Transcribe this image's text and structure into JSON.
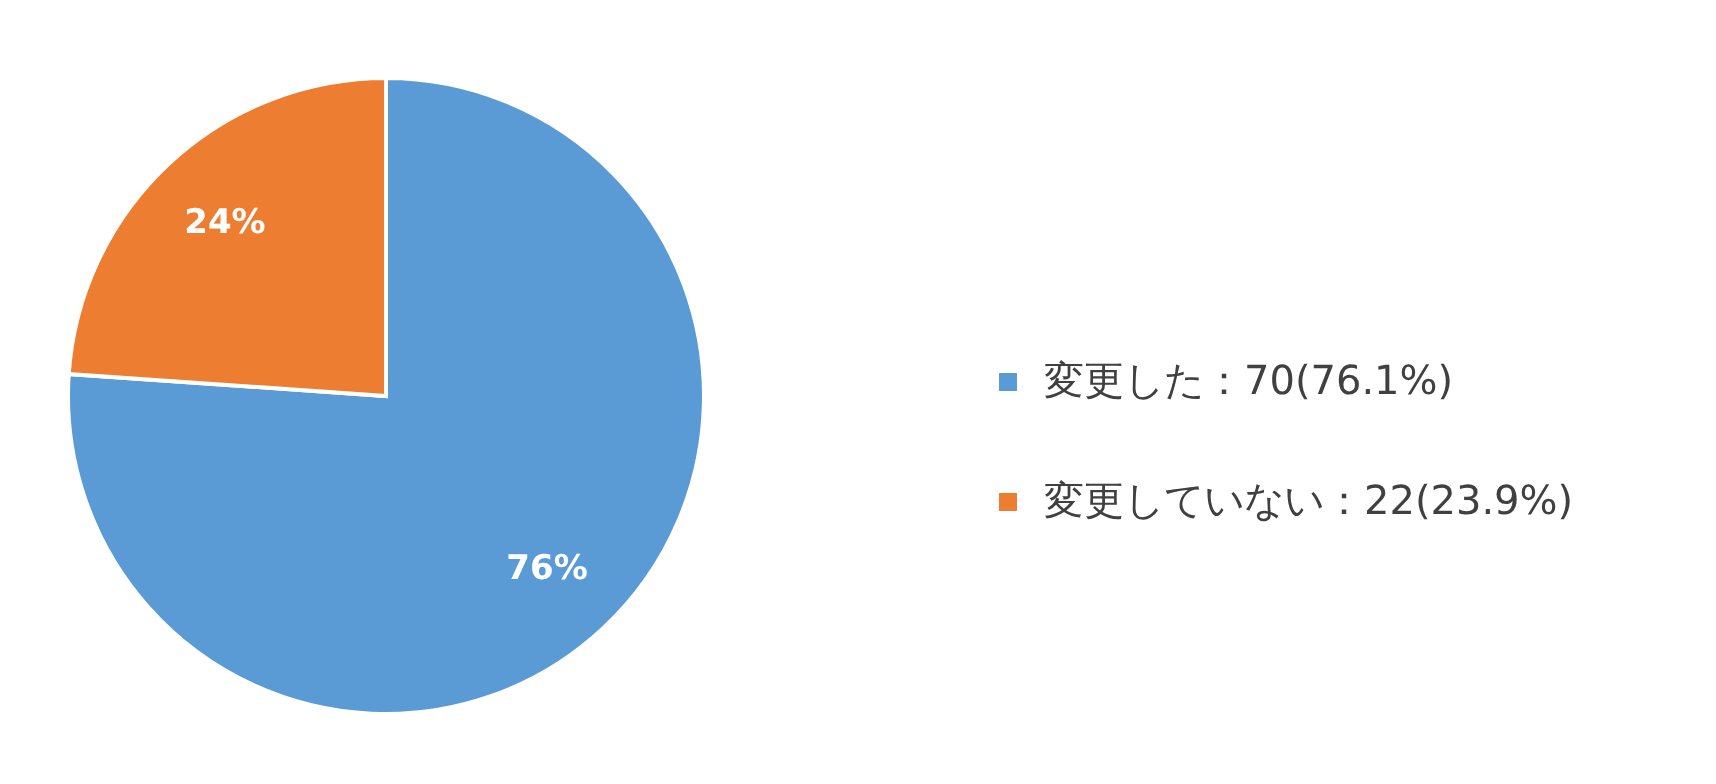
{
  "chart_data": {
    "type": "pie",
    "categories": [
      "変更した：70(76.1%)",
      "変更していない：22(23.9%)"
    ],
    "values": [
      76.1,
      23.9
    ],
    "colors": [
      "#5b9bd5",
      "#ed7d31"
    ],
    "value_labels": [
      "76%",
      "24%"
    ],
    "legend": "right"
  }
}
